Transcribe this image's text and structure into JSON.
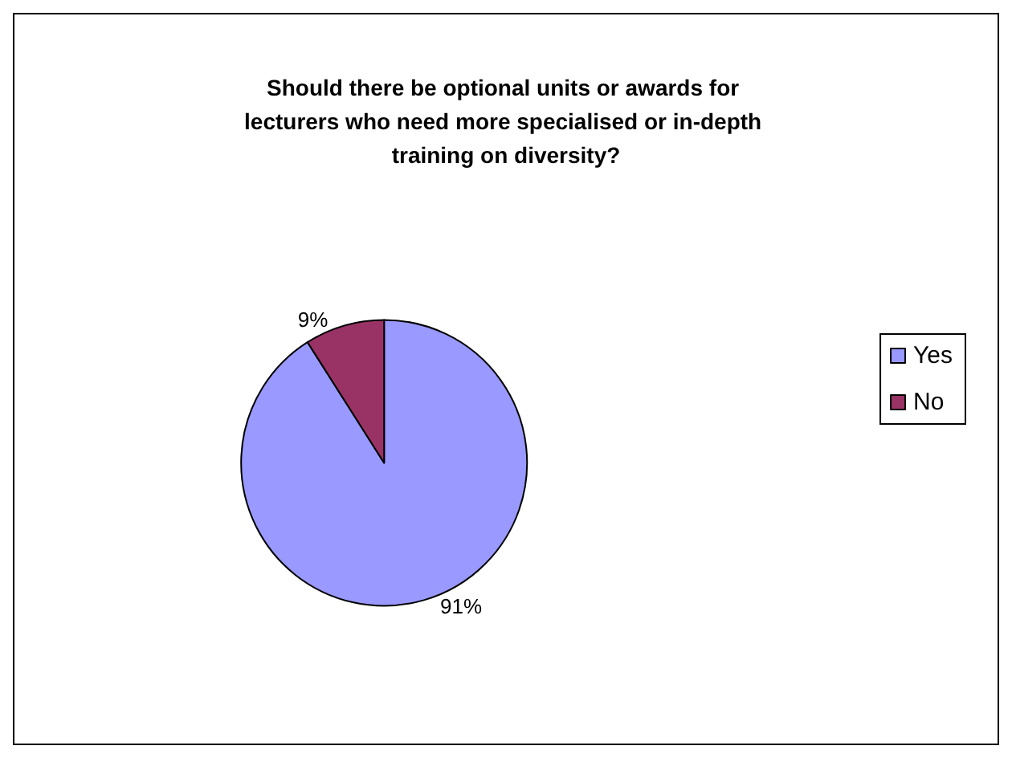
{
  "chart_data": {
    "type": "pie",
    "title": "Should there be optional units or awards for lecturers who need more specialised or in-depth training on diversity?",
    "categories": [
      "Yes",
      "No"
    ],
    "values": [
      91,
      9
    ],
    "colors": [
      "#9999ff",
      "#993366"
    ],
    "value_labels": [
      "91%",
      "9%"
    ],
    "legend": "right"
  }
}
